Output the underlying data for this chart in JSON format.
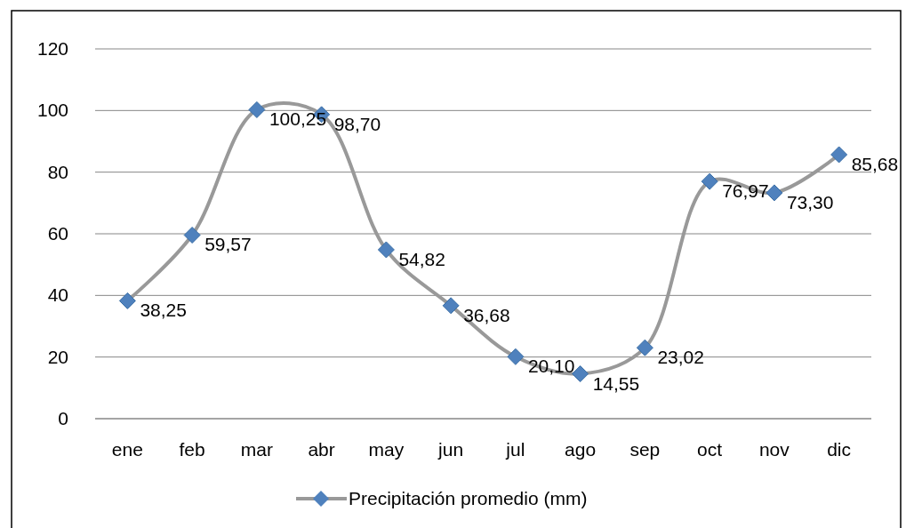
{
  "chart_data": {
    "type": "line",
    "categories": [
      "ene",
      "feb",
      "mar",
      "abr",
      "may",
      "jun",
      "jul",
      "ago",
      "sep",
      "oct",
      "nov",
      "dic"
    ],
    "series": [
      {
        "name": "Precipitación promedio (mm)",
        "color": "#4f81bd",
        "values": [
          38.25,
          59.57,
          100.25,
          98.7,
          54.82,
          36.68,
          20.1,
          14.55,
          23.02,
          76.97,
          73.3,
          85.68
        ],
        "value_labels": [
          "38,25",
          "59,57",
          "100,25",
          "98,70",
          "54,82",
          "36,68",
          "20,10",
          "14,55",
          "23,02",
          "76,97",
          "73,30",
          "85,68"
        ]
      }
    ],
    "ylim": [
      0,
      120
    ],
    "yticks": [
      0,
      20,
      40,
      60,
      80,
      100,
      120
    ],
    "grid": "y",
    "legend": "bottom",
    "marker": "diamond",
    "line_style": "solid"
  }
}
